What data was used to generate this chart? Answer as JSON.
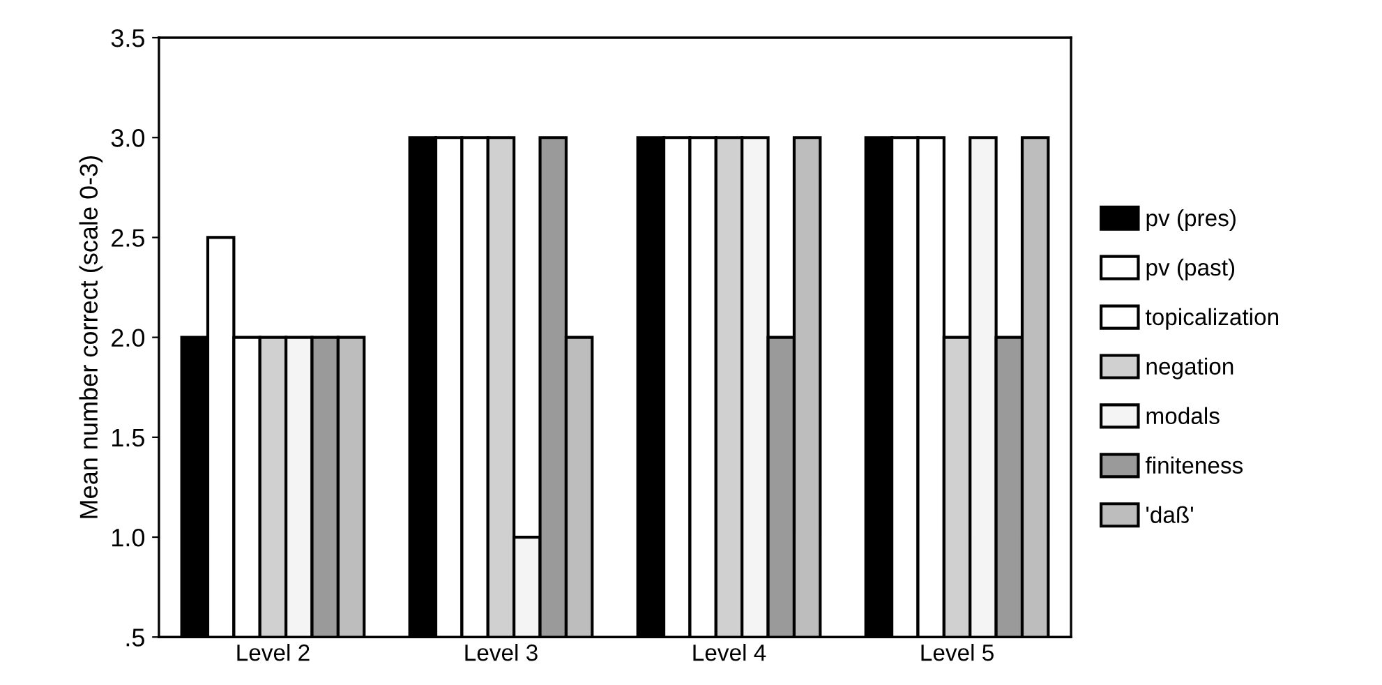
{
  "chart_data": {
    "type": "bar",
    "ylabel": "Mean number correct (scale 0-3)",
    "categories": [
      "Level 2",
      "Level 3",
      "Level 4",
      "Level 5"
    ],
    "series": [
      {
        "name": "pv (pres)",
        "color": "#000000",
        "values": [
          2.0,
          3.0,
          3.0,
          3.0
        ]
      },
      {
        "name": "pv (past)",
        "color": "#ffffff",
        "values": [
          2.5,
          3.0,
          3.0,
          3.0
        ]
      },
      {
        "name": "topicalization",
        "color": "#ffffff",
        "values": [
          2.0,
          3.0,
          3.0,
          3.0
        ]
      },
      {
        "name": "negation",
        "color": "#d0d0d0",
        "values": [
          2.0,
          3.0,
          3.0,
          2.0
        ]
      },
      {
        "name": "modals",
        "color": "#f4f4f4",
        "values": [
          2.0,
          1.0,
          3.0,
          3.0
        ]
      },
      {
        "name": "finiteness",
        "color": "#9a9a9a",
        "values": [
          2.0,
          3.0,
          2.0,
          2.0
        ]
      },
      {
        "name": "'daß'",
        "color": "#bdbdbd",
        "values": [
          2.0,
          2.0,
          3.0,
          3.0
        ]
      }
    ],
    "ylim": [
      0.5,
      3.5
    ],
    "yticks": [
      {
        "value": 0.5,
        "label": ".5"
      },
      {
        "value": 1.0,
        "label": "1.0"
      },
      {
        "value": 1.5,
        "label": "1.5"
      },
      {
        "value": 2.0,
        "label": "2.0"
      },
      {
        "value": 2.5,
        "label": "2.5"
      },
      {
        "value": 3.0,
        "label": "3.0"
      },
      {
        "value": 3.5,
        "label": "3.5"
      }
    ],
    "grid": false,
    "legend": "right"
  }
}
